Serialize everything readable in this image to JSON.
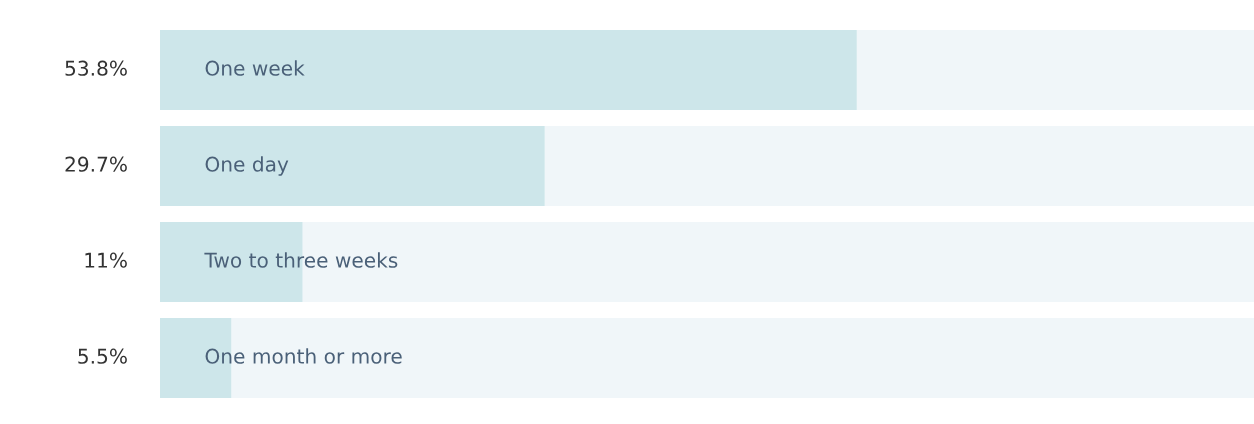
{
  "chart_data": {
    "type": "bar",
    "orientation": "horizontal",
    "categories": [
      "One week",
      "One day",
      "Two to three weeks",
      "One month or more"
    ],
    "values": [
      53.8,
      29.7,
      11,
      5.5
    ],
    "value_labels": [
      "53.8%",
      "29.7%",
      "11%",
      "5.5%"
    ],
    "color": "#cde6ea"
  }
}
